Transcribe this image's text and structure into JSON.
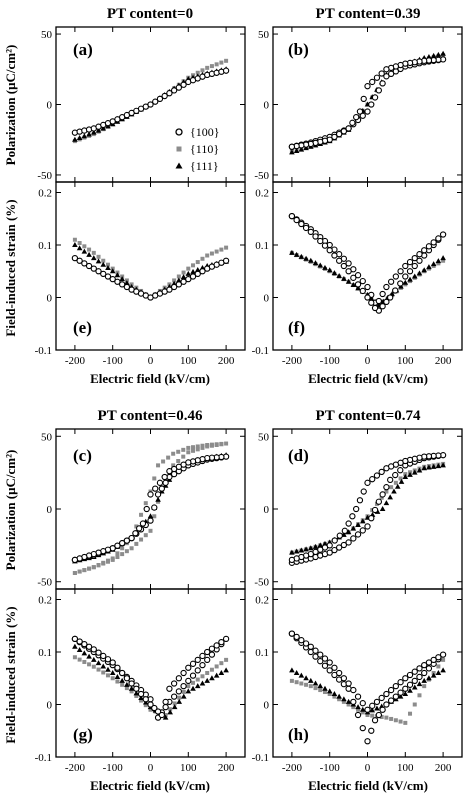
{
  "figure": {
    "top_titles": [
      "PT content=0",
      "PT content=0.39"
    ],
    "bottom_titles": [
      "PT content=0.46",
      "PT content=0.74"
    ],
    "xlabel": "Electric field (kV/cm)",
    "ylabel_polarization": "Polarization (μC/cm²)",
    "ylabel_strain": "Field-induced strain (%)",
    "colors": {
      "{100}": "#000000",
      "{110}": "#8c8c8c",
      "{111}": "#000000"
    },
    "markers": {
      "{100}": "open-circle",
      "{110}": "gray-square",
      "{111}": "filled-triangle"
    }
  },
  "chart_data": [
    {
      "type": "scatter",
      "panel": "(a)",
      "title": "PT content=0",
      "ylabel": "Polarization (μC/cm²)",
      "xlim": [
        -250,
        250
      ],
      "ylim": [
        -55,
        55
      ],
      "xticks": [
        -200,
        -100,
        0,
        100,
        200
      ],
      "yticks": [
        -50,
        0,
        50
      ],
      "legend": {
        "placement": "lower-right",
        "entries": [
          "{100}",
          "{110}",
          "{111}"
        ]
      },
      "series": [
        {
          "name": "{100}",
          "x": [
            -200,
            -150,
            -100,
            -50,
            0,
            50,
            100,
            150,
            200
          ],
          "y": [
            -20,
            -17,
            -12,
            -6,
            0,
            8,
            16,
            21,
            24
          ]
        },
        {
          "name": "{110}",
          "x": [
            -200,
            -150,
            -100,
            -50,
            0,
            50,
            100,
            150,
            200
          ],
          "y": [
            -26,
            -21,
            -14,
            -7,
            0,
            9,
            19,
            26,
            31
          ]
        },
        {
          "name": "{111}",
          "x": [
            -200,
            -150,
            -100,
            -50,
            0,
            50,
            100,
            150,
            200
          ],
          "y": [
            -25,
            -20,
            -14,
            -7,
            0,
            9,
            18,
            22,
            25
          ]
        }
      ]
    },
    {
      "type": "scatter",
      "panel": "(b)",
      "title": "PT content=0.39",
      "xlim": [
        -250,
        250
      ],
      "ylim": [
        -55,
        55
      ],
      "xticks": [
        -200,
        -100,
        0,
        100,
        200
      ],
      "yticks": [
        -50,
        0,
        50
      ],
      "series": [
        {
          "name": "{100}",
          "x": [
            -200,
            -150,
            -100,
            -50,
            0,
            20,
            50,
            100,
            150,
            200,
            150,
            100,
            50,
            0,
            -20,
            -50,
            -100,
            -150,
            -200
          ],
          "y": [
            -30,
            -27,
            -23,
            -17,
            -5,
            5,
            20,
            27,
            30,
            32,
            31,
            29,
            25,
            13,
            -5,
            -17,
            -25,
            -28,
            -30
          ]
        },
        {
          "name": "{110}",
          "x": [
            -200,
            -150,
            -100,
            -50,
            0,
            50,
            100,
            150,
            200
          ],
          "y": [
            -33,
            -30,
            -26,
            -18,
            0,
            20,
            28,
            32,
            35
          ]
        },
        {
          "name": "{111}",
          "x": [
            -200,
            -150,
            -100,
            -50,
            0,
            50,
            100,
            150,
            200
          ],
          "y": [
            -34,
            -30,
            -26,
            -18,
            0,
            21,
            28,
            33,
            36
          ]
        }
      ]
    },
    {
      "type": "scatter",
      "panel": "(e)",
      "ylabel": "Field-induced strain (%)",
      "xlabel": "Electric field (kV/cm)",
      "xlim": [
        -250,
        250
      ],
      "ylim": [
        -0.1,
        0.22
      ],
      "xticks": [
        -200,
        -100,
        0,
        100,
        200
      ],
      "yticks": [
        -0.1,
        0.0,
        0.1,
        0.2
      ],
      "series": [
        {
          "name": "{100}",
          "x": [
            -200,
            -150,
            -100,
            -50,
            0,
            50,
            100,
            150,
            200
          ],
          "y": [
            0.075,
            0.055,
            0.035,
            0.015,
            0.0,
            0.015,
            0.035,
            0.055,
            0.07
          ]
        },
        {
          "name": "{110}",
          "x": [
            -200,
            -150,
            -100,
            -50,
            0,
            50,
            100,
            150,
            200
          ],
          "y": [
            0.11,
            0.085,
            0.055,
            0.025,
            0.0,
            0.025,
            0.055,
            0.08,
            0.095
          ]
        },
        {
          "name": "{111}",
          "x": [
            -200,
            -150,
            -100,
            -50,
            0,
            50,
            100,
            150,
            200
          ],
          "y": [
            0.1,
            0.075,
            0.05,
            0.02,
            0.0,
            0.02,
            0.045,
            0.06,
            0.068
          ]
        }
      ]
    },
    {
      "type": "scatter",
      "panel": "(f)",
      "xlabel": "Electric field (kV/cm)",
      "xlim": [
        -250,
        250
      ],
      "ylim": [
        -0.1,
        0.22
      ],
      "xticks": [
        -200,
        -100,
        0,
        100,
        200
      ],
      "yticks": [
        -0.1,
        0.0,
        0.1,
        0.2
      ],
      "series": [
        {
          "name": "{100}",
          "x": [
            -200,
            -150,
            -100,
            -50,
            0,
            30,
            60,
            100,
            150,
            200,
            150,
            100,
            50,
            20,
            0,
            -50,
            -100,
            -150,
            -200
          ],
          "y": [
            0.155,
            0.13,
            0.1,
            0.065,
            0.02,
            -0.025,
            0.0,
            0.04,
            0.08,
            0.12,
            0.09,
            0.06,
            0.02,
            -0.02,
            0.0,
            0.05,
            0.09,
            0.125,
            0.155
          ]
        },
        {
          "name": "{110}",
          "x": [
            -200,
            -150,
            -100,
            -50,
            0,
            30,
            100,
            150,
            200
          ],
          "y": [
            0.085,
            0.068,
            0.05,
            0.03,
            0.005,
            -0.015,
            0.025,
            0.05,
            0.07
          ]
        },
        {
          "name": "{111}",
          "x": [
            -200,
            -150,
            -100,
            -50,
            0,
            30,
            100,
            150,
            200
          ],
          "y": [
            0.085,
            0.07,
            0.052,
            0.03,
            0.005,
            -0.015,
            0.028,
            0.052,
            0.075
          ]
        }
      ]
    },
    {
      "type": "scatter",
      "panel": "(c)",
      "title": "PT content=0.46",
      "ylabel": "Polarization (μC/cm²)",
      "xlim": [
        -250,
        250
      ],
      "ylim": [
        -55,
        55
      ],
      "xticks": [
        -200,
        -100,
        0,
        100,
        200
      ],
      "yticks": [
        -50,
        0,
        50
      ],
      "series": [
        {
          "name": "{100}",
          "x": [
            -200,
            -150,
            -100,
            -50,
            0,
            20,
            50,
            100,
            150,
            200,
            150,
            100,
            50,
            0,
            -20,
            -50,
            -100,
            -150,
            -200
          ],
          "y": [
            -35,
            -32,
            -27,
            -20,
            -8,
            10,
            22,
            30,
            34,
            36,
            35,
            32,
            26,
            10,
            -10,
            -20,
            -27,
            -31,
            -35
          ]
        },
        {
          "name": "{110}",
          "x": [
            -200,
            -150,
            -100,
            -50,
            0,
            30,
            60,
            100,
            150,
            200,
            150,
            100,
            60,
            20,
            0,
            -50,
            -100,
            -150,
            -200
          ],
          "y": [
            -44,
            -40,
            -35,
            -27,
            -15,
            15,
            30,
            39,
            43,
            45,
            44,
            42,
            38,
            30,
            12,
            -20,
            -34,
            -40,
            -44
          ]
        },
        {
          "name": "{111}",
          "x": [
            -200,
            -150,
            -100,
            -50,
            0,
            30,
            60,
            100,
            150,
            200
          ],
          "y": [
            -36,
            -33,
            -28,
            -20,
            -5,
            12,
            24,
            31,
            35,
            37
          ]
        }
      ]
    },
    {
      "type": "scatter",
      "panel": "(d)",
      "title": "PT content=0.74",
      "xlim": [
        -250,
        250
      ],
      "ylim": [
        -55,
        55
      ],
      "xticks": [
        -200,
        -100,
        0,
        100,
        200
      ],
      "yticks": [
        -50,
        0,
        50
      ],
      "series": [
        {
          "name": "{100}",
          "x": [
            -200,
            -150,
            -100,
            -50,
            0,
            30,
            60,
            100,
            150,
            200,
            150,
            100,
            50,
            0,
            -30,
            -60,
            -100,
            -150,
            -200
          ],
          "y": [
            -37,
            -34,
            -30,
            -23,
            -12,
            5,
            20,
            30,
            35,
            37,
            36,
            33,
            28,
            18,
            0,
            -15,
            -25,
            -31,
            -35
          ]
        },
        {
          "name": "{110}",
          "x": [
            -200,
            -150,
            -100,
            -50,
            0,
            50,
            100,
            150,
            200
          ],
          "y": [
            -30,
            -27,
            -23,
            -16,
            -5,
            12,
            24,
            29,
            31
          ]
        },
        {
          "name": "{111}",
          "x": [
            -200,
            -150,
            -100,
            -50,
            0,
            40,
            70,
            100,
            150,
            200
          ],
          "y": [
            -30,
            -27,
            -23,
            -16,
            -6,
            0,
            12,
            22,
            28,
            30
          ]
        }
      ]
    },
    {
      "type": "scatter",
      "panel": "(g)",
      "ylabel": "Field-induced strain (%)",
      "xlabel": "Electric field (kV/cm)",
      "xlim": [
        -250,
        250
      ],
      "ylim": [
        -0.1,
        0.22
      ],
      "xticks": [
        -200,
        -100,
        0,
        100,
        200
      ],
      "yticks": [
        -0.1,
        0.0,
        0.1,
        0.2
      ],
      "series": [
        {
          "name": "{100}",
          "x": [
            -200,
            -150,
            -100,
            -50,
            0,
            20,
            50,
            100,
            150,
            200,
            150,
            100,
            50,
            30,
            0,
            -50,
            -100,
            -150,
            -200
          ],
          "y": [
            0.125,
            0.1,
            0.075,
            0.045,
            0.01,
            -0.025,
            0.005,
            0.045,
            0.085,
            0.125,
            0.1,
            0.07,
            0.03,
            -0.02,
            0.0,
            0.04,
            0.08,
            0.105,
            0.125
          ]
        },
        {
          "name": "{110}",
          "x": [
            -200,
            -150,
            -100,
            -50,
            0,
            40,
            100,
            150,
            200
          ],
          "y": [
            0.09,
            0.072,
            0.05,
            0.025,
            -0.01,
            -0.02,
            0.035,
            0.06,
            0.085
          ]
        },
        {
          "name": "{111}",
          "x": [
            -200,
            -150,
            -100,
            -50,
            0,
            40,
            100,
            150,
            200
          ],
          "y": [
            0.11,
            0.085,
            0.06,
            0.03,
            -0.005,
            -0.025,
            0.025,
            0.045,
            0.065
          ]
        }
      ]
    },
    {
      "type": "scatter",
      "panel": "(h)",
      "xlabel": "Electric field (kV/cm)",
      "xlim": [
        -250,
        250
      ],
      "ylim": [
        -0.1,
        0.22
      ],
      "xticks": [
        -200,
        -100,
        0,
        100,
        200
      ],
      "yticks": [
        -0.1,
        0.0,
        0.1,
        0.2
      ],
      "series": [
        {
          "name": "{100}",
          "x": [
            -200,
            -150,
            -100,
            -50,
            0,
            20,
            50,
            100,
            150,
            200,
            150,
            100,
            50,
            0,
            -50,
            -100,
            -150,
            -200
          ],
          "y": [
            0.135,
            0.1,
            0.065,
            0.03,
            -0.07,
            -0.03,
            0.0,
            0.03,
            0.06,
            0.095,
            0.075,
            0.05,
            0.02,
            -0.01,
            0.04,
            0.08,
            0.11,
            0.135
          ]
        },
        {
          "name": "{110}",
          "x": [
            -200,
            -150,
            -100,
            -50,
            0,
            50,
            100,
            150,
            200
          ],
          "y": [
            0.045,
            0.035,
            0.02,
            0.0,
            -0.02,
            -0.025,
            -0.035,
            0.035,
            0.085
          ]
        },
        {
          "name": "{111}",
          "x": [
            -200,
            -150,
            -100,
            -50,
            0,
            50,
            100,
            150,
            200
          ],
          "y": [
            0.065,
            0.045,
            0.025,
            0.005,
            -0.015,
            0.0,
            0.02,
            0.045,
            0.065
          ]
        }
      ]
    }
  ]
}
